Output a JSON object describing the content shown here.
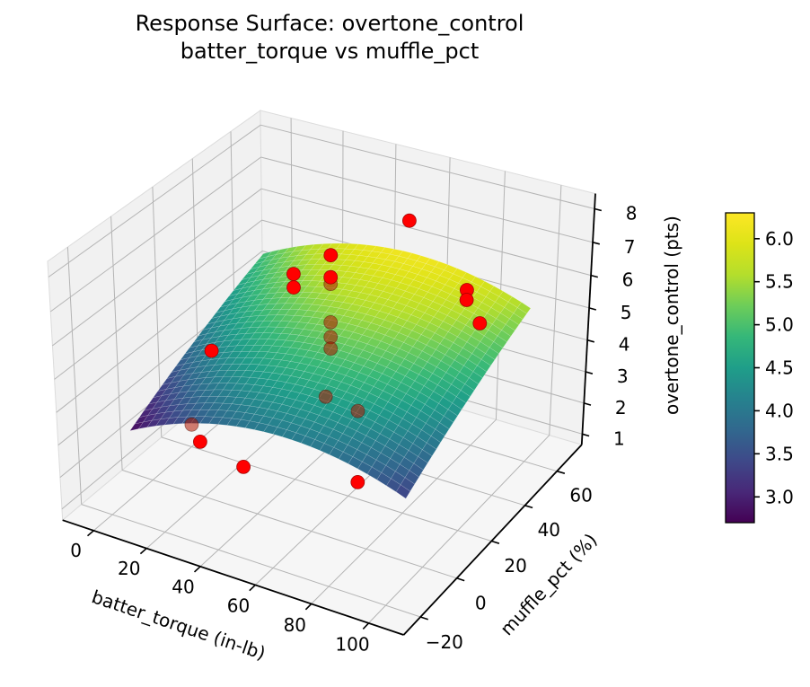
{
  "title": {
    "line1": "Response Surface: overtone_control",
    "line2": "batter_torque vs muffle_pct"
  },
  "chart_data": {
    "type": "3d-surface-with-scatter",
    "x_axis": {
      "label": "batter_torque (in-lb)",
      "ticks": [
        0,
        20,
        40,
        60,
        80,
        100
      ],
      "tick_labels": [
        "0",
        "20",
        "40",
        "60",
        "80",
        "100"
      ],
      "range": [
        -12,
        112
      ]
    },
    "y_axis": {
      "label": "muffle_pct (%)",
      "ticks": [
        -20,
        0,
        20,
        40,
        60
      ],
      "tick_labels": [
        "−20",
        "0",
        "20",
        "40",
        "60"
      ],
      "range": [
        -29,
        76
      ]
    },
    "z_axis": {
      "label": "overtone_control (pts)",
      "ticks": [
        1,
        2,
        3,
        4,
        5,
        6,
        7,
        8
      ],
      "tick_labels": [
        "1",
        "2",
        "3",
        "4",
        "5",
        "6",
        "7",
        "8"
      ],
      "range": [
        0.65,
        8.45
      ]
    },
    "view": {
      "elev": 30,
      "azim": -60,
      "dist": 7
    },
    "surface": {
      "x_domain": [
        0,
        100
      ],
      "y_domain": [
        -10,
        60
      ],
      "grid_n": 30,
      "model": "z = b0 + bx*x + bxx*x^2 + by*y + byy*y^2",
      "coeffs": {
        "b0": 3.12,
        "bx": 0.0444,
        "bxx": -0.000387,
        "by": 0.0357,
        "byy": -0.0001
      },
      "z_min": 2.75,
      "z_max": 6.2
    },
    "colormap": {
      "name": "viridis",
      "vmin": 2.7,
      "vmax": 6.3,
      "stops": [
        "#440154",
        "#482878",
        "#3e4989",
        "#31688e",
        "#26828e",
        "#1f9e89",
        "#35b779",
        "#6dcd59",
        "#b4de2c",
        "#dde318",
        "#fde725"
      ]
    },
    "colorbar": {
      "tick_labels": [
        "3.0",
        "3.5",
        "4.0",
        "4.5",
        "5.0",
        "5.5",
        "6.0"
      ],
      "tick_values": [
        3.0,
        3.5,
        4.0,
        4.5,
        5.0,
        5.5,
        6.0
      ]
    },
    "marker": {
      "color": "#ff0000",
      "edge_color": "#990000",
      "dim_color": "#b01500",
      "dim_edge_color": "#4d0f00"
    },
    "points": [
      {
        "x": 65,
        "y": 45,
        "z": 8.0,
        "behind_surface": false
      },
      {
        "x": 50,
        "y": 25,
        "z": 7.55,
        "behind_surface": false
      },
      {
        "x": 50,
        "y": 25,
        "z": 6.9,
        "behind_surface": false
      },
      {
        "x": 40,
        "y": 20,
        "z": 7.0,
        "behind_surface": false
      },
      {
        "x": 40,
        "y": 20,
        "z": 6.6,
        "behind_surface": false
      },
      {
        "x": 50,
        "y": 25,
        "z": 6.7,
        "behind_surface": true
      },
      {
        "x": 50,
        "y": 25,
        "z": 5.55,
        "behind_surface": true
      },
      {
        "x": 50,
        "y": 25,
        "z": 5.1,
        "behind_surface": true
      },
      {
        "x": 50,
        "y": 25,
        "z": 4.75,
        "behind_surface": true
      },
      {
        "x": 80,
        "y": 55,
        "z": 5.8,
        "behind_surface": false
      },
      {
        "x": 80,
        "y": 55,
        "z": 5.5,
        "behind_surface": false
      },
      {
        "x": 85,
        "y": 55,
        "z": 4.9,
        "behind_surface": false
      },
      {
        "x": 5,
        "y": 25,
        "z": 3.6,
        "behind_surface": false
      },
      {
        "x": 8,
        "y": 10,
        "z": 2.1,
        "behind_surface": true
      },
      {
        "x": 15,
        "y": 5,
        "z": 2.0,
        "behind_surface": false
      },
      {
        "x": 35,
        "y": 0,
        "z": 2.0,
        "behind_surface": false
      },
      {
        "x": 80,
        "y": -5,
        "z": 3.0,
        "behind_surface": false
      },
      {
        "x": 55,
        "y": 15,
        "z": 3.9,
        "behind_surface": true
      },
      {
        "x": 70,
        "y": 10,
        "z": 4.1,
        "behind_surface": true
      }
    ],
    "colors": {
      "background": "#ffffff",
      "pane_left": "#f1f1f1",
      "pane_right": "#f2f2f2",
      "pane_floor": "#f6f6f6",
      "grid": "#b4b4b4",
      "spine": "#000000"
    }
  }
}
